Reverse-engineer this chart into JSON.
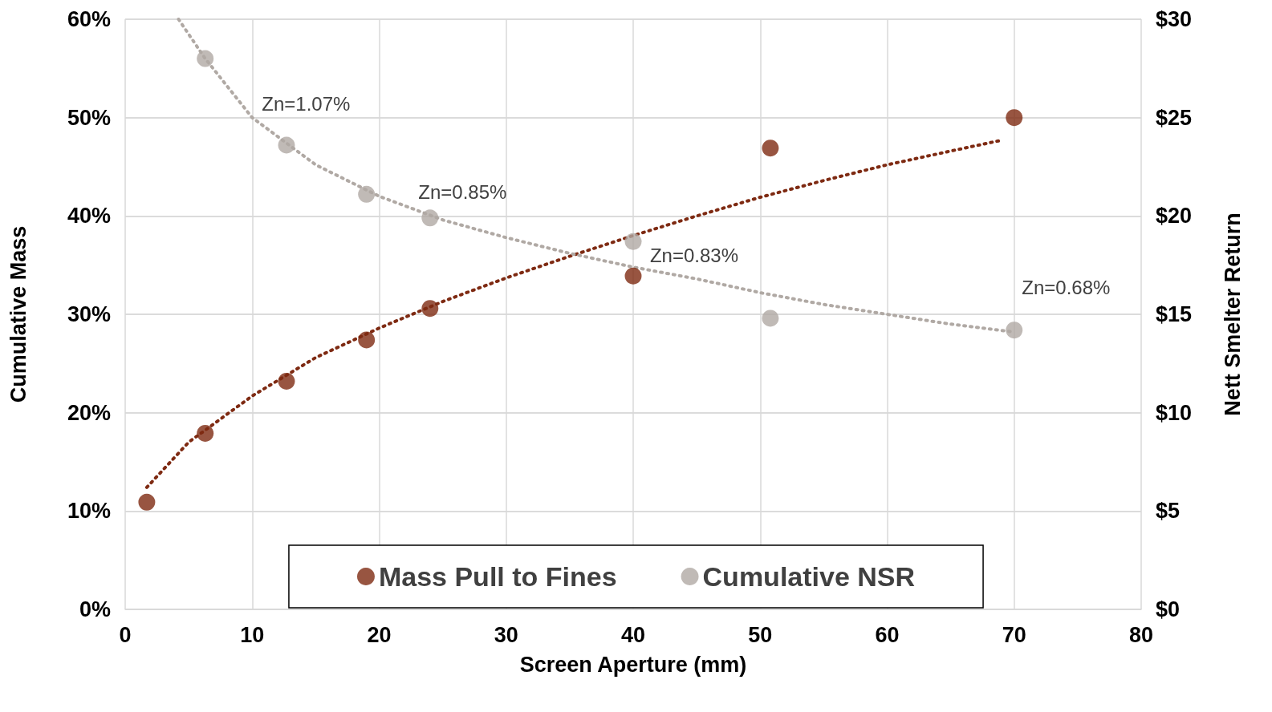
{
  "chart_data": {
    "type": "scatter",
    "xlabel": "Screen Aperture (mm)",
    "ylabel": "Cumulative Mass",
    "y2label": "Nett Smelter Return",
    "series": [
      {
        "name": "Mass Pull to Fines",
        "color": "#7e2a12",
        "x": [
          1.7,
          6.3,
          12.7,
          19,
          24,
          40,
          50.8,
          70
        ],
        "values": [
          10.9,
          17.9,
          23.2,
          27.4,
          30.6,
          33.9,
          46.9,
          50.0
        ]
      },
      {
        "name": "Cumulative NSR",
        "color": "#b0a9a4",
        "axis": "y2",
        "x": [
          6.3,
          12.7,
          19,
          24,
          40,
          50.8,
          70
        ],
        "values": [
          28.0,
          23.6,
          21.1,
          19.9,
          18.7,
          14.8,
          14.2
        ]
      },
      {
        "type": "line",
        "color": "#7e2a12",
        "line_style": "dotted",
        "marker": "none",
        "x": [
          1.7,
          5,
          10,
          15,
          20,
          25,
          30,
          35,
          40,
          45,
          50,
          55,
          60,
          65,
          69
        ],
        "values": [
          12.4,
          17.0,
          21.7,
          25.6,
          28.6,
          31.3,
          33.7,
          35.9,
          38.0,
          40.0,
          41.9,
          43.6,
          45.2,
          46.6,
          47.7
        ]
      },
      {
        "type": "line",
        "color": "#b0a9a4",
        "line_style": "dotted",
        "marker": "none",
        "axis": "y2",
        "x": [
          4.2,
          6.3,
          10,
          15,
          20,
          25,
          30,
          35,
          40,
          45,
          50,
          55,
          60,
          65,
          70
        ],
        "values": [
          30.0,
          28.0,
          25.0,
          22.6,
          21.0,
          19.8,
          18.9,
          18.1,
          17.4,
          16.8,
          16.1,
          15.5,
          15.0,
          14.5,
          14.1
        ]
      }
    ],
    "xlim": [
      0,
      80
    ],
    "xticks": [
      0,
      10,
      20,
      30,
      40,
      50,
      60,
      70,
      80
    ],
    "ylim": [
      0,
      60
    ],
    "yticks": [
      {
        "value": 0,
        "label": "0%"
      },
      {
        "value": 10,
        "label": "10%"
      },
      {
        "value": 20,
        "label": "20%"
      },
      {
        "value": 30,
        "label": "30%"
      },
      {
        "value": 40,
        "label": "40%"
      },
      {
        "value": 50,
        "label": "50%"
      },
      {
        "value": 60,
        "label": "60%"
      }
    ],
    "y2lim": [
      0,
      30
    ],
    "y2ticks": [
      {
        "value": 0,
        "label": "$0"
      },
      {
        "value": 5,
        "label": "$5"
      },
      {
        "value": 10,
        "label": "$10"
      },
      {
        "value": 15,
        "label": "$15"
      },
      {
        "value": 20,
        "label": "$20"
      },
      {
        "value": 25,
        "label": "$25"
      },
      {
        "value": 30,
        "label": "$30"
      }
    ],
    "annotations": [
      "Zn=1.07%",
      "Zn=0.85%",
      "Zn=0.83%",
      "Zn=0.68%"
    ],
    "grid": true,
    "legend": "bottom",
    "marker": "circle"
  }
}
